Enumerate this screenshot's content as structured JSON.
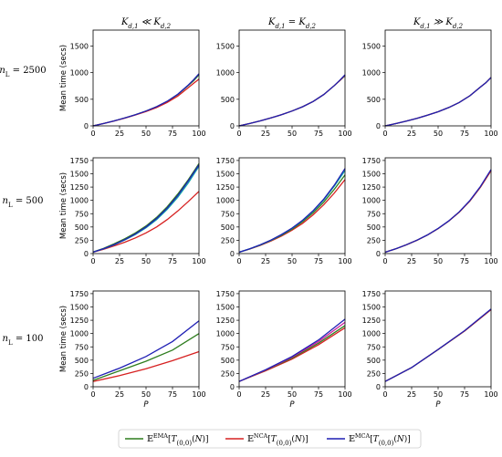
{
  "figure": {
    "column_titles": [
      "K_{d,1} ≪ K_{d,2}",
      "K_{d,1} = K_{d,2}",
      "K_{d,1} ≫ K_{d,2}"
    ],
    "row_labels": [
      "n_L = 2500",
      "n_L = 500",
      "n_L = 100"
    ],
    "legend": [
      {
        "label": "𝔼^{EMA}[T_{(0,0)}(N)]",
        "color": "#2e7d1e"
      },
      {
        "label": "𝔼^{NCA}[T_{(0,0)}(N)]",
        "color": "#d62020"
      },
      {
        "label": "𝔼^{MCA}[T_{(0,0)}(N)]",
        "color": "#1f1fb4"
      }
    ],
    "extra_series_colors": {
      "teal": "#12a9a8",
      "magenta": "#cc1f9d"
    }
  },
  "chart_data": [
    {
      "type": "line",
      "row": 0,
      "col": 0,
      "title": "K_{d,1} ≪ K_{d,2}",
      "ylabel": "Mean time (secs)",
      "xlabel": "",
      "xlim": [
        0,
        100
      ],
      "ylim": [
        0,
        1800
      ],
      "xticks": [
        0,
        25,
        50,
        75,
        100
      ],
      "yticks": [
        0,
        500,
        1000,
        1500
      ],
      "x": [
        0,
        10,
        20,
        30,
        40,
        50,
        60,
        70,
        80,
        90,
        95,
        100
      ],
      "series": [
        {
          "name": "EMA",
          "color": "#2e7d1e",
          "values": [
            0,
            45,
            95,
            150,
            210,
            280,
            360,
            460,
            590,
            760,
            850,
            960
          ]
        },
        {
          "name": "NCA",
          "color": "#d62020",
          "values": [
            0,
            44,
            92,
            145,
            205,
            270,
            345,
            440,
            560,
            720,
            800,
            880
          ]
        },
        {
          "name": "MCA",
          "color": "#1f1fb4",
          "values": [
            0,
            45,
            95,
            150,
            210,
            280,
            360,
            462,
            595,
            770,
            870,
            980
          ]
        }
      ]
    },
    {
      "type": "line",
      "row": 0,
      "col": 1,
      "title": "K_{d,1} = K_{d,2}",
      "xlabel": "",
      "xlim": [
        0,
        100
      ],
      "ylim": [
        0,
        1800
      ],
      "xticks": [
        0,
        25,
        50,
        75,
        100
      ],
      "yticks": [
        0,
        500,
        1000,
        1500
      ],
      "x": [
        0,
        10,
        20,
        30,
        40,
        50,
        60,
        70,
        80,
        90,
        95,
        100
      ],
      "series": [
        {
          "name": "EMA",
          "color": "#2e7d1e",
          "values": [
            0,
            45,
            95,
            150,
            210,
            280,
            360,
            460,
            590,
            760,
            850,
            940
          ]
        },
        {
          "name": "NCA",
          "color": "#d62020",
          "values": [
            0,
            45,
            95,
            150,
            210,
            280,
            360,
            460,
            590,
            760,
            850,
            950
          ]
        },
        {
          "name": "MCA",
          "color": "#1f1fb4",
          "values": [
            0,
            45,
            95,
            150,
            210,
            280,
            360,
            460,
            590,
            760,
            855,
            960
          ]
        }
      ]
    },
    {
      "type": "line",
      "row": 0,
      "col": 2,
      "title": "K_{d,1} ≫ K_{d,2}",
      "xlabel": "",
      "xlim": [
        0,
        100
      ],
      "ylim": [
        0,
        1800
      ],
      "xticks": [
        0,
        25,
        50,
        75,
        100
      ],
      "yticks": [
        0,
        500,
        1000,
        1500
      ],
      "x": [
        0,
        10,
        20,
        30,
        40,
        50,
        60,
        70,
        80,
        90,
        95,
        100
      ],
      "series": [
        {
          "name": "EMA",
          "color": "#2e7d1e",
          "values": [
            0,
            43,
            90,
            143,
            200,
            265,
            345,
            440,
            565,
            730,
            810,
            910
          ]
        },
        {
          "name": "NCA",
          "color": "#d62020",
          "values": [
            0,
            43,
            90,
            143,
            200,
            265,
            345,
            440,
            565,
            730,
            810,
            910
          ]
        },
        {
          "name": "MCA",
          "color": "#1f1fb4",
          "values": [
            0,
            43,
            90,
            143,
            200,
            265,
            345,
            440,
            565,
            730,
            810,
            910
          ]
        }
      ]
    },
    {
      "type": "line",
      "row": 1,
      "col": 0,
      "ylabel": "Mean time (secs)",
      "xlabel": "",
      "xlim": [
        0,
        100
      ],
      "ylim": [
        0,
        1800
      ],
      "xticks": [
        0,
        25,
        50,
        75,
        100
      ],
      "yticks": [
        0,
        250,
        500,
        750,
        1000,
        1250,
        1500,
        1750
      ],
      "x": [
        0,
        10,
        20,
        30,
        40,
        50,
        60,
        70,
        80,
        90,
        100
      ],
      "series": [
        {
          "name": "EMA",
          "color": "#2e7d1e",
          "values": [
            30,
            100,
            185,
            280,
            390,
            520,
            680,
            880,
            1120,
            1390,
            1690
          ]
        },
        {
          "name": "NCA",
          "color": "#d62020",
          "values": [
            25,
            80,
            145,
            215,
            295,
            390,
            500,
            640,
            800,
            980,
            1170
          ]
        },
        {
          "name": "teal",
          "color": "#12a9a8",
          "values": [
            28,
            90,
            165,
            255,
            360,
            485,
            640,
            830,
            1060,
            1330,
            1640
          ]
        },
        {
          "name": "MCA",
          "color": "#1f1fb4",
          "values": [
            28,
            92,
            170,
            262,
            370,
            500,
            660,
            855,
            1090,
            1370,
            1670
          ]
        }
      ]
    },
    {
      "type": "line",
      "row": 1,
      "col": 1,
      "xlabel": "",
      "xlim": [
        0,
        100
      ],
      "ylim": [
        0,
        1800
      ],
      "xticks": [
        0,
        25,
        50,
        75,
        100
      ],
      "yticks": [
        0,
        250,
        500,
        750,
        1000,
        1250,
        1500,
        1750
      ],
      "x": [
        0,
        10,
        20,
        30,
        40,
        50,
        60,
        70,
        80,
        90,
        100
      ],
      "series": [
        {
          "name": "NCA",
          "color": "#d62020",
          "values": [
            25,
            85,
            155,
            235,
            330,
            440,
            570,
            730,
            920,
            1140,
            1390
          ]
        },
        {
          "name": "EMA",
          "color": "#2e7d1e",
          "values": [
            25,
            88,
            160,
            245,
            345,
            460,
            600,
            770,
            970,
            1210,
            1480
          ]
        },
        {
          "name": "teal",
          "color": "#12a9a8",
          "values": [
            25,
            90,
            165,
            250,
            355,
            475,
            620,
            800,
            1010,
            1270,
            1560
          ]
        },
        {
          "name": "MCA",
          "color": "#1f1fb4",
          "values": [
            25,
            91,
            167,
            253,
            358,
            480,
            628,
            810,
            1025,
            1290,
            1600
          ]
        }
      ]
    },
    {
      "type": "line",
      "row": 1,
      "col": 2,
      "xlabel": "",
      "xlim": [
        0,
        100
      ],
      "ylim": [
        0,
        1800
      ],
      "xticks": [
        0,
        25,
        50,
        75,
        100
      ],
      "yticks": [
        0,
        250,
        500,
        750,
        1000,
        1250,
        1500,
        1750
      ],
      "x": [
        0,
        10,
        20,
        30,
        40,
        50,
        60,
        70,
        80,
        90,
        100
      ],
      "series": [
        {
          "name": "EMA",
          "color": "#2e7d1e",
          "values": [
            25,
            90,
            165,
            250,
            350,
            470,
            610,
            780,
            990,
            1250,
            1560
          ]
        },
        {
          "name": "NCA",
          "color": "#d62020",
          "values": [
            25,
            90,
            165,
            250,
            350,
            470,
            610,
            780,
            990,
            1250,
            1560
          ]
        },
        {
          "name": "MCA",
          "color": "#1f1fb4",
          "values": [
            25,
            91,
            166,
            252,
            352,
            473,
            614,
            785,
            998,
            1262,
            1580
          ]
        }
      ]
    },
    {
      "type": "line",
      "row": 2,
      "col": 0,
      "ylabel": "Mean time (secs)",
      "xlabel": "P",
      "xlim": [
        0,
        100
      ],
      "ylim": [
        0,
        1800
      ],
      "xticks": [
        0,
        25,
        50,
        75,
        100
      ],
      "yticks": [
        0,
        250,
        500,
        750,
        1000,
        1250,
        1500,
        1750
      ],
      "x": [
        0,
        25,
        50,
        75,
        100
      ],
      "series": [
        {
          "name": "EMA",
          "color": "#2e7d1e",
          "values": [
            120,
            300,
            480,
            690,
            1000
          ]
        },
        {
          "name": "NCA",
          "color": "#d62020",
          "values": [
            100,
            210,
            340,
            490,
            660
          ]
        },
        {
          "name": "MCA",
          "color": "#1f1fb4",
          "values": [
            160,
            350,
            570,
            850,
            1240
          ]
        }
      ]
    },
    {
      "type": "line",
      "row": 2,
      "col": 1,
      "xlabel": "P",
      "xlim": [
        0,
        100
      ],
      "ylim": [
        0,
        1800
      ],
      "xticks": [
        0,
        25,
        50,
        75,
        100
      ],
      "yticks": [
        0,
        250,
        500,
        750,
        1000,
        1250,
        1500,
        1750
      ],
      "x": [
        0,
        25,
        50,
        75,
        100
      ],
      "series": [
        {
          "name": "NCA",
          "color": "#d62020",
          "values": [
            100,
            300,
            520,
            790,
            1110
          ]
        },
        {
          "name": "EMA",
          "color": "#2e7d1e",
          "values": [
            100,
            310,
            540,
            820,
            1150
          ]
        },
        {
          "name": "magenta",
          "color": "#cc1f9d",
          "values": [
            100,
            315,
            555,
            850,
            1210
          ]
        },
        {
          "name": "MCA",
          "color": "#1f1fb4",
          "values": [
            100,
            320,
            570,
            880,
            1270
          ]
        }
      ]
    },
    {
      "type": "line",
      "row": 2,
      "col": 2,
      "xlabel": "P",
      "xlim": [
        0,
        100
      ],
      "ylim": [
        0,
        1800
      ],
      "xticks": [
        0,
        25,
        50,
        75,
        100
      ],
      "yticks": [
        0,
        250,
        500,
        750,
        1000,
        1250,
        1500,
        1750
      ],
      "x": [
        0,
        25,
        50,
        75,
        100
      ],
      "series": [
        {
          "name": "EMA",
          "color": "#2e7d1e",
          "values": [
            100,
            360,
            700,
            1050,
            1450
          ]
        },
        {
          "name": "NCA",
          "color": "#d62020",
          "values": [
            100,
            360,
            700,
            1050,
            1450
          ]
        },
        {
          "name": "MCA",
          "color": "#1f1fb4",
          "values": [
            100,
            362,
            702,
            1055,
            1460
          ]
        }
      ]
    }
  ]
}
